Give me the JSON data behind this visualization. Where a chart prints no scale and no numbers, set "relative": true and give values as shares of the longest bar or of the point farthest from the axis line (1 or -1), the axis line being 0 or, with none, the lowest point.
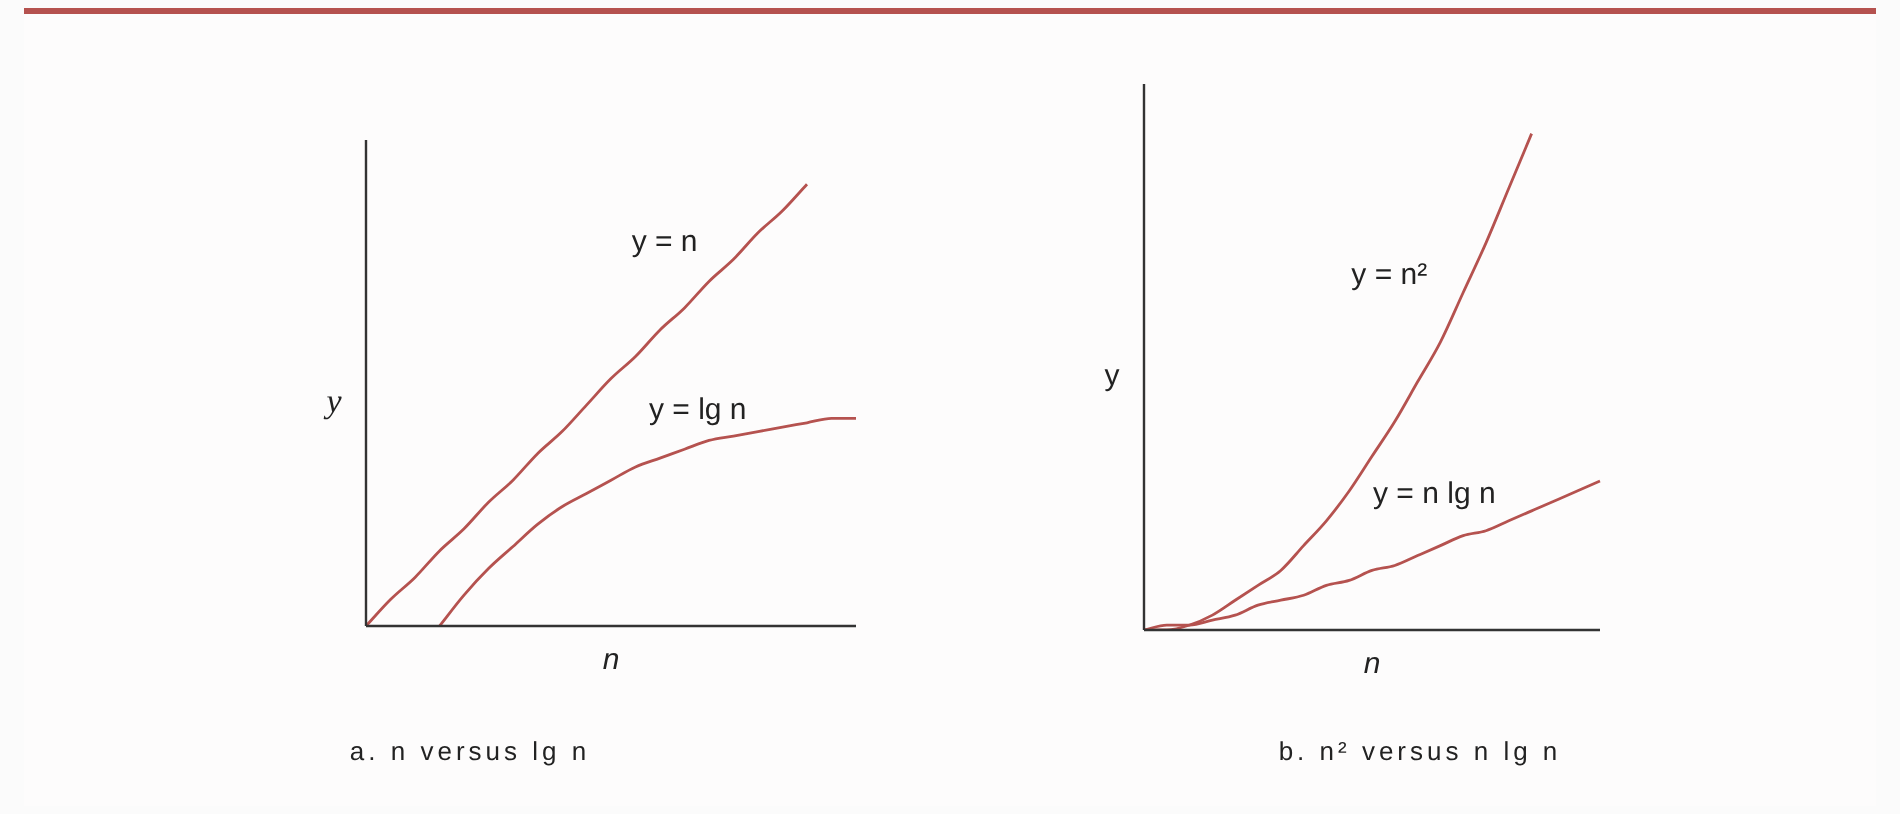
{
  "chart_data": [
    {
      "type": "line",
      "title": "a. n versus lg n",
      "xlabel": "n",
      "ylabel": "y",
      "relative": true,
      "legend": false,
      "marker": "none",
      "categories": [
        null,
        null,
        null,
        null,
        null,
        null,
        null,
        null,
        null,
        null,
        null,
        null,
        null,
        null,
        null,
        null,
        null,
        null,
        null,
        null,
        null
      ],
      "series": [
        {
          "name": "y = n",
          "color": "#b5524f",
          "values": [
            0,
            0.06,
            0.11,
            0.17,
            0.22,
            0.28,
            0.33,
            0.39,
            0.44,
            0.5,
            0.56,
            0.61,
            0.67,
            0.72,
            0.78,
            0.83,
            0.89,
            0.94,
            1,
            null,
            null
          ]
        },
        {
          "name": "y = lg n",
          "color": "#b5524f",
          "values": [
            null,
            null,
            null,
            0,
            0.07,
            0.13,
            0.18,
            0.23,
            0.27,
            0.3,
            0.33,
            0.36,
            0.38,
            0.4,
            0.42,
            0.43,
            0.44,
            0.45,
            0.46,
            0.47,
            0.47
          ]
        }
      ]
    },
    {
      "type": "line",
      "title": "b. n² versus n lg n",
      "xlabel": "n",
      "ylabel": "y",
      "relative": true,
      "legend": false,
      "marker": "none",
      "categories": [
        null,
        null,
        null,
        null,
        null,
        null,
        null,
        null,
        null,
        null,
        null,
        null,
        null,
        null,
        null,
        null,
        null,
        null,
        null,
        null,
        null
      ],
      "series": [
        {
          "name": "y = n²",
          "color": "#b5524f",
          "values": [
            0,
            0,
            0.01,
            0.03,
            0.06,
            0.09,
            0.12,
            0.17,
            0.22,
            0.28,
            0.35,
            0.42,
            0.5,
            0.58,
            0.68,
            0.78,
            0.89,
            1,
            null,
            null,
            null
          ]
        },
        {
          "name": "y = n lg n",
          "color": "#b5524f",
          "values": [
            0,
            0.01,
            0.01,
            0.02,
            0.03,
            0.05,
            0.06,
            0.07,
            0.09,
            0.1,
            0.12,
            0.13,
            0.15,
            0.17,
            0.19,
            0.2,
            0.22,
            0.24,
            0.26,
            0.28,
            0.3
          ]
        }
      ]
    }
  ]
}
